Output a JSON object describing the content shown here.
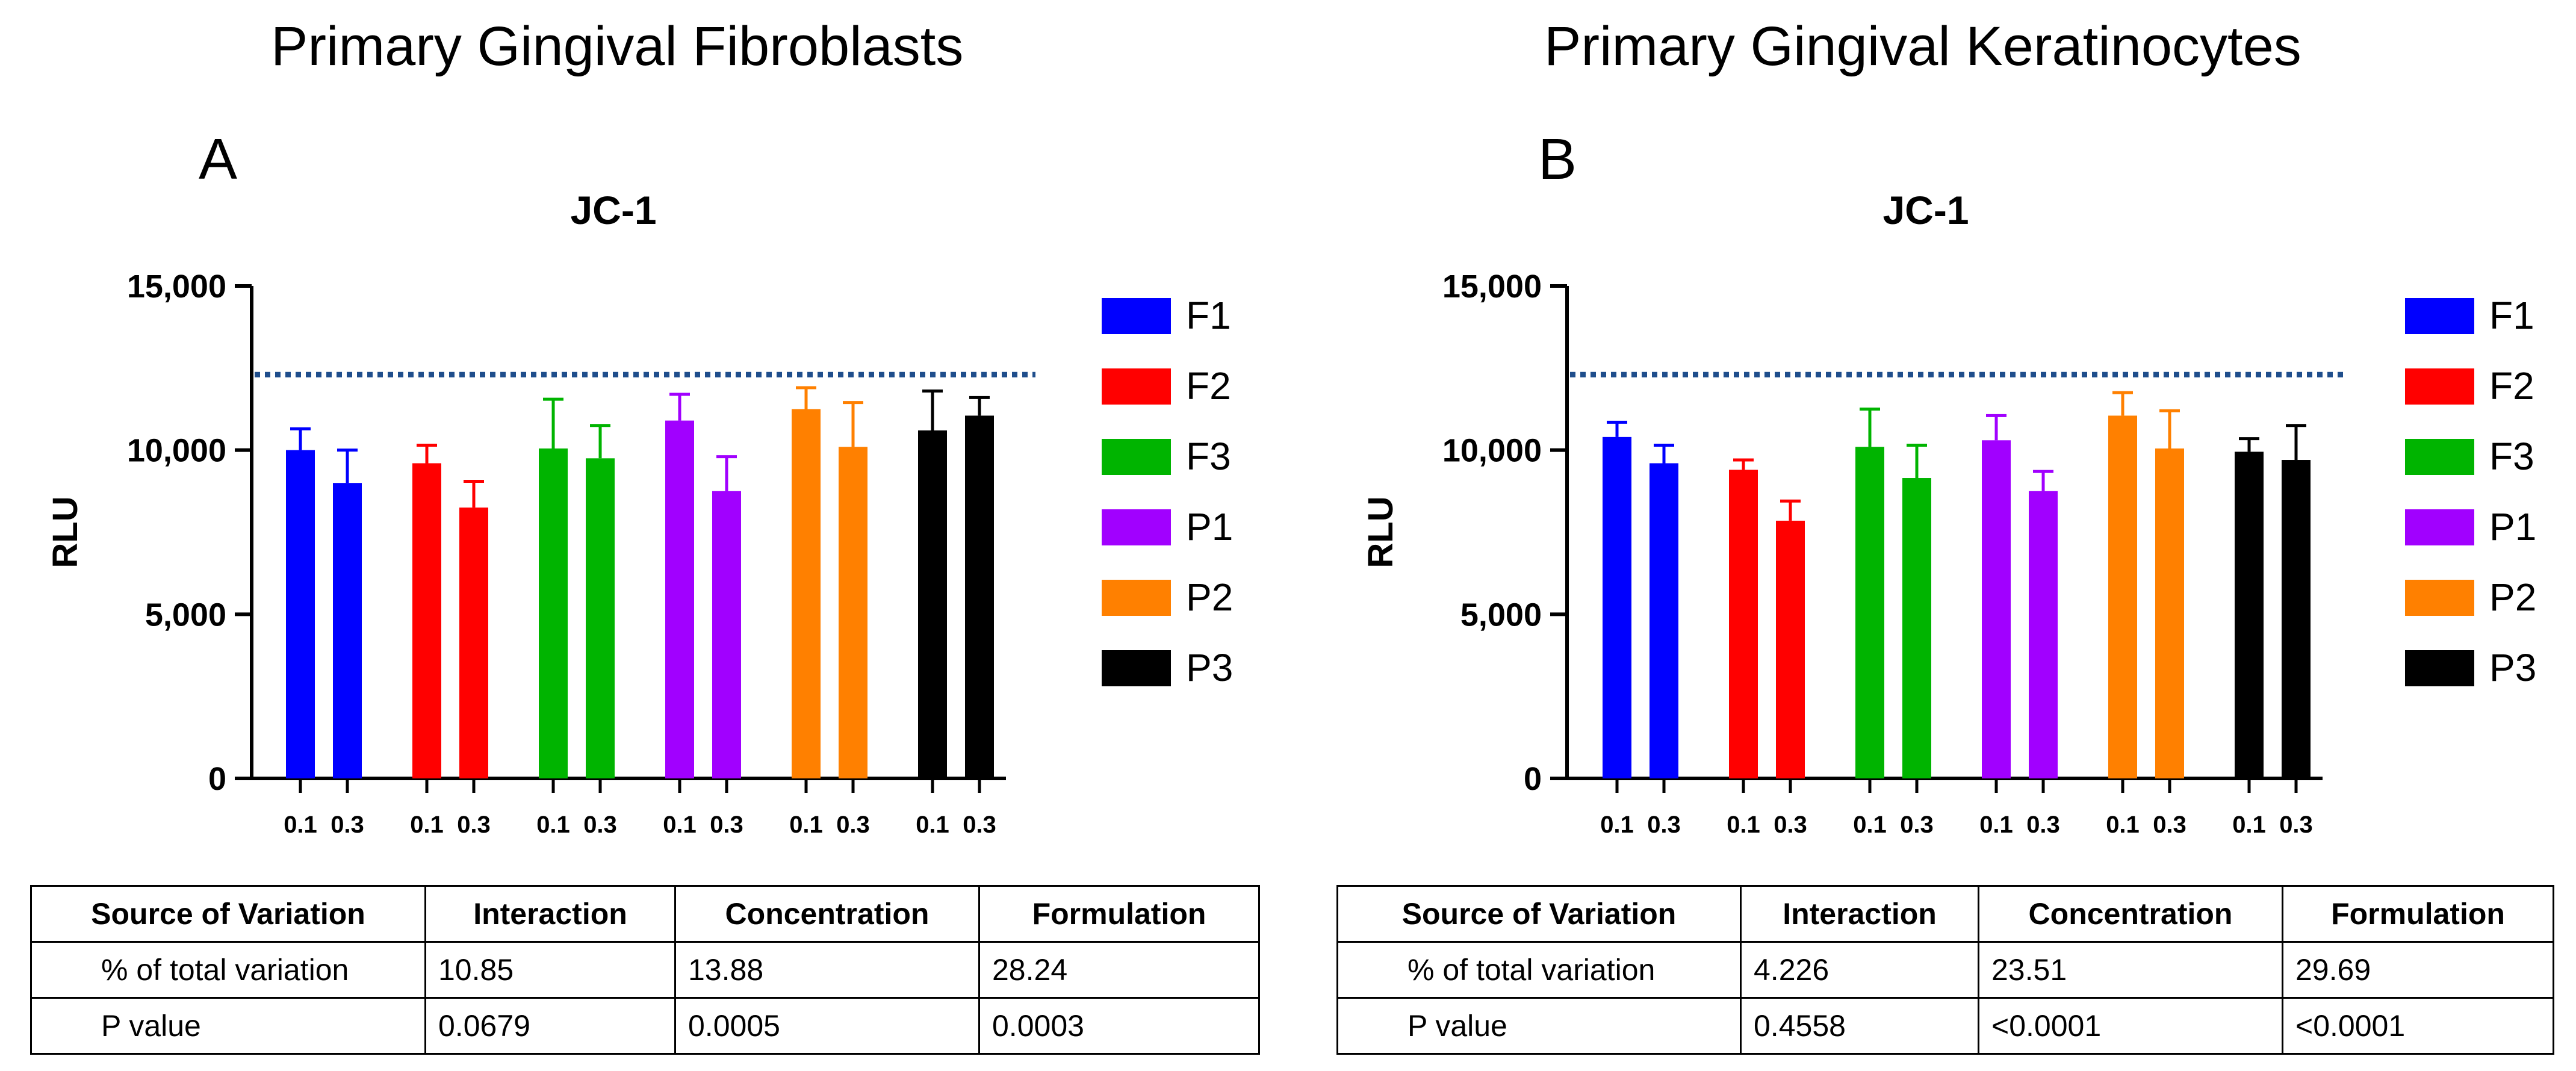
{
  "panels": [
    {
      "figure_title": "Primary Gingival Fibroblasts",
      "letter": "A",
      "table": {
        "headers": [
          "Source of Variation",
          "Interaction",
          "Concentration",
          "Formulation"
        ],
        "rows": [
          [
            "% of total variation",
            "10.85",
            "13.88",
            "28.24"
          ],
          [
            "P value",
            "0.0679",
            "0.0005",
            "0.0003"
          ]
        ]
      }
    },
    {
      "figure_title": "Primary Gingival Keratinocytes",
      "letter": "B",
      "table": {
        "headers": [
          "Source of Variation",
          "Interaction",
          "Concentration",
          "Formulation"
        ],
        "rows": [
          [
            "% of total variation",
            "4.226",
            "23.51",
            "29.69"
          ],
          [
            "P value",
            "0.4558",
            "<0.0001",
            "<0.0001"
          ]
        ]
      }
    }
  ],
  "chart_data": [
    {
      "type": "bar",
      "title": "JC-1",
      "xlabel": "",
      "ylabel": "RLU",
      "ylim": [
        0,
        15000
      ],
      "yticks": [
        0,
        5000,
        10000,
        15000
      ],
      "ytick_labels": [
        "0",
        "5,000",
        "10,000",
        "15,000"
      ],
      "categories": [
        "0.1",
        "0.3"
      ],
      "reference_line": 12300,
      "legend_position": "right",
      "series": [
        {
          "name": "F1",
          "color": "#0000ff",
          "values": [
            10000,
            9000
          ],
          "errors": [
            650,
            1000
          ]
        },
        {
          "name": "F2",
          "color": "#ff0000",
          "values": [
            9600,
            8250
          ],
          "errors": [
            550,
            800
          ]
        },
        {
          "name": "F3",
          "color": "#00b400",
          "values": [
            10050,
            9750
          ],
          "errors": [
            1500,
            1000
          ]
        },
        {
          "name": "P1",
          "color": "#a100ff",
          "values": [
            10900,
            8750
          ],
          "errors": [
            800,
            1050
          ]
        },
        {
          "name": "P2",
          "color": "#ff8000",
          "values": [
            11250,
            10100
          ],
          "errors": [
            650,
            1350
          ]
        },
        {
          "name": "P3",
          "color": "#000000",
          "values": [
            10600,
            11050
          ],
          "errors": [
            1200,
            550
          ]
        }
      ]
    },
    {
      "type": "bar",
      "title": "JC-1",
      "xlabel": "",
      "ylabel": "RLU",
      "ylim": [
        0,
        15000
      ],
      "yticks": [
        0,
        5000,
        10000,
        15000
      ],
      "ytick_labels": [
        "0",
        "5,000",
        "10,000",
        "15,000"
      ],
      "categories": [
        "0.1",
        "0.3"
      ],
      "reference_line": 12300,
      "legend_position": "right",
      "series": [
        {
          "name": "F1",
          "color": "#0000ff",
          "values": [
            10400,
            9600
          ],
          "errors": [
            450,
            550
          ]
        },
        {
          "name": "F2",
          "color": "#ff0000",
          "values": [
            9400,
            7850
          ],
          "errors": [
            300,
            600
          ]
        },
        {
          "name": "F3",
          "color": "#00b400",
          "values": [
            10100,
            9150
          ],
          "errors": [
            1150,
            1000
          ]
        },
        {
          "name": "P1",
          "color": "#a100ff",
          "values": [
            10300,
            8750
          ],
          "errors": [
            750,
            600
          ]
        },
        {
          "name": "P2",
          "color": "#ff8000",
          "values": [
            11050,
            10050
          ],
          "errors": [
            700,
            1150
          ]
        },
        {
          "name": "P3",
          "color": "#000000",
          "values": [
            9950,
            9700
          ],
          "errors": [
            400,
            1050
          ]
        }
      ]
    }
  ]
}
